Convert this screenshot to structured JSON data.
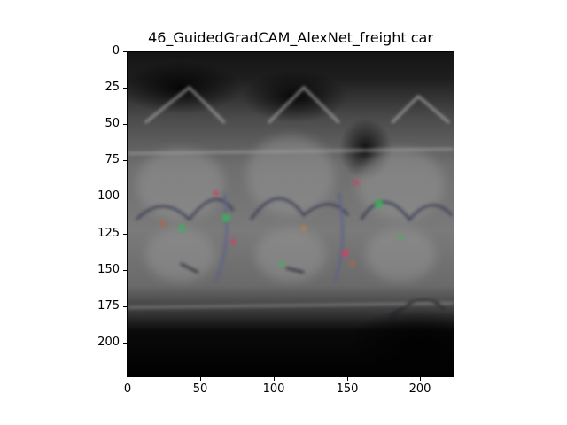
{
  "figure": {
    "title": "46_GuidedGradCAM_AlexNet_freight car",
    "image": {
      "description_icon": "guided-gradcam-heatmap-image",
      "dominant_colors": [
        "#000000",
        "#5a5a5a",
        "#8a8a8a",
        "#3fa05a",
        "#c04050",
        "#5060c0"
      ]
    },
    "y_axis": {
      "range": [
        0,
        224
      ],
      "inverted": true,
      "ticks": [
        "0",
        "25",
        "50",
        "75",
        "100",
        "125",
        "150",
        "175",
        "200"
      ]
    },
    "x_axis": {
      "range": [
        0,
        224
      ],
      "ticks": [
        "0",
        "50",
        "100",
        "150",
        "200"
      ]
    }
  }
}
